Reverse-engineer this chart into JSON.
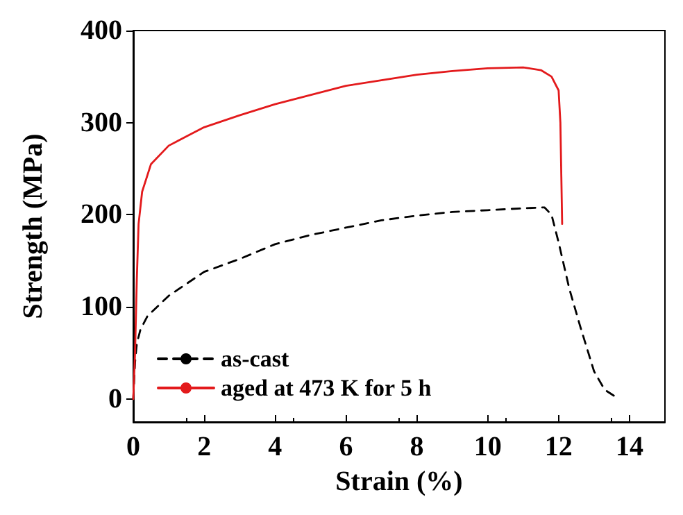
{
  "chart_data": {
    "type": "line",
    "xlabel": "Strain (%)",
    "ylabel": "Strength (MPa)",
    "xlim": [
      0,
      15
    ],
    "xticks": [
      0,
      2,
      4,
      6,
      8,
      10,
      12,
      14
    ],
    "ylim": [
      -25,
      400
    ],
    "yticks": [
      0,
      100,
      200,
      300,
      400
    ],
    "grid": false,
    "legend": "bottom left",
    "marker": "none",
    "series": [
      {
        "name": "as-cast",
        "color": "#000000",
        "line_style": "dashed",
        "x": [
          0,
          0.05,
          0.1,
          0.2,
          0.4,
          1,
          2,
          3,
          4,
          5,
          6,
          7,
          8,
          9,
          10,
          11,
          11.6,
          11.8,
          12,
          12.3,
          12.6,
          13,
          13.3,
          13.7
        ],
        "values": [
          0,
          40,
          60,
          75,
          90,
          112,
          138,
          152,
          168,
          178,
          186,
          194,
          199,
          203,
          205,
          207,
          208,
          200,
          170,
          120,
          80,
          30,
          10,
          0
        ]
      },
      {
        "name": "aged at 473 K for 5 h",
        "color": "#e31a1c",
        "line_style": "solid",
        "x": [
          0,
          0.05,
          0.1,
          0.15,
          0.25,
          0.5,
          1,
          1.5,
          2,
          3,
          4,
          5,
          6,
          7,
          8,
          9,
          10,
          11,
          11.5,
          11.8,
          12,
          12.05,
          12.1
        ],
        "values": [
          0,
          50,
          130,
          190,
          225,
          255,
          275,
          285,
          295,
          308,
          320,
          330,
          340,
          346,
          352,
          356,
          359,
          360,
          357,
          350,
          335,
          300,
          190
        ]
      }
    ]
  }
}
